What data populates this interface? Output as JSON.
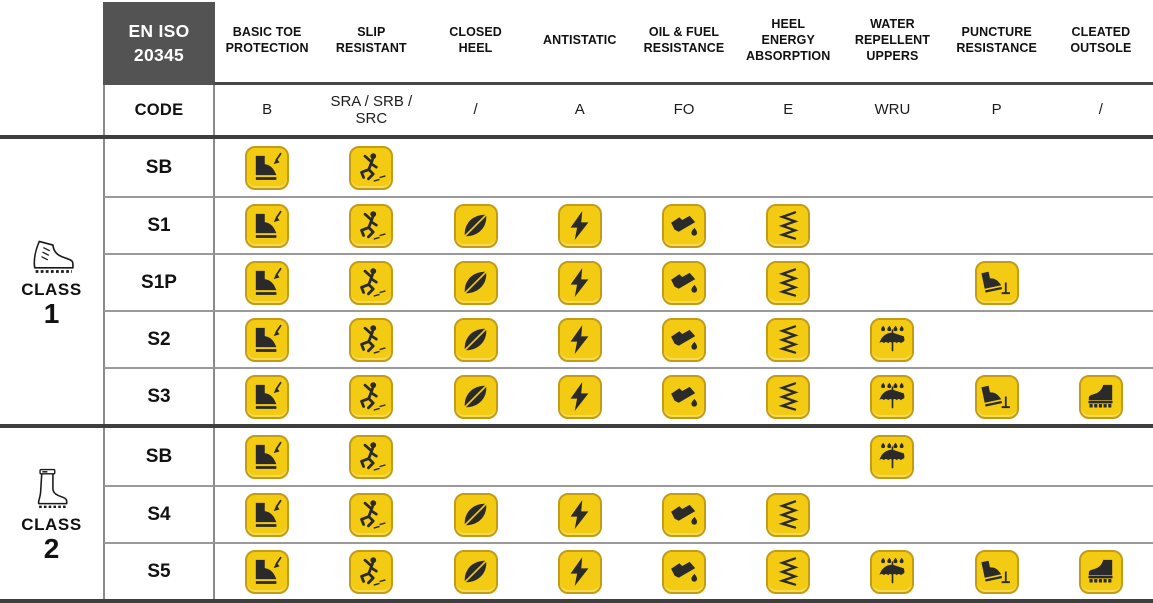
{
  "header": {
    "standard": [
      "EN ISO",
      "20345"
    ],
    "code_label": "CODE",
    "columns": [
      {
        "label": "BASIC TOE PROTECTION",
        "code": "B",
        "icon": "toe-protection-icon"
      },
      {
        "label": "SLIP RESISTANT",
        "code": "SRA / SRB / SRC",
        "icon": "slip-resistant-icon"
      },
      {
        "label": "CLOSED HEEL",
        "code": "/",
        "icon": "closed-heel-icon"
      },
      {
        "label": "ANTISTATIC",
        "code": "A",
        "icon": "antistatic-icon"
      },
      {
        "label": "OIL & FUEL RESISTANCE",
        "code": "FO",
        "icon": "oil-fuel-resistance-icon"
      },
      {
        "label": "HEEL ENERGY ABSORPTION",
        "code": "E",
        "icon": "heel-energy-absorption-icon"
      },
      {
        "label": "WATER REPELLENT UPPERS",
        "code": "WRU",
        "icon": "water-repellent-uppers-icon"
      },
      {
        "label": "PUNCTURE RESISTANCE",
        "code": "P",
        "icon": "puncture-resistance-icon"
      },
      {
        "label": "CLEATED OUTSOLE",
        "code": "/",
        "icon": "cleated-outsole-icon"
      }
    ]
  },
  "classes": [
    {
      "label": "CLASS",
      "number": "1",
      "icon": "leather-boot-icon",
      "rows": [
        {
          "code": "SB",
          "features": [
            1,
            1,
            0,
            0,
            0,
            0,
            0,
            0,
            0
          ]
        },
        {
          "code": "S1",
          "features": [
            1,
            1,
            1,
            1,
            1,
            1,
            0,
            0,
            0
          ]
        },
        {
          "code": "S1P",
          "features": [
            1,
            1,
            1,
            1,
            1,
            1,
            0,
            1,
            0
          ]
        },
        {
          "code": "S2",
          "features": [
            1,
            1,
            1,
            1,
            1,
            1,
            1,
            0,
            0
          ]
        },
        {
          "code": "S3",
          "features": [
            1,
            1,
            1,
            1,
            1,
            1,
            1,
            1,
            1
          ]
        }
      ]
    },
    {
      "label": "CLASS",
      "number": "2",
      "icon": "rubber-boot-icon",
      "rows": [
        {
          "code": "SB",
          "features": [
            1,
            1,
            0,
            0,
            0,
            0,
            1,
            0,
            0
          ]
        },
        {
          "code": "S4",
          "features": [
            1,
            1,
            1,
            1,
            1,
            1,
            0,
            0,
            0
          ]
        },
        {
          "code": "S5",
          "features": [
            1,
            1,
            1,
            1,
            1,
            1,
            1,
            1,
            1
          ]
        }
      ]
    }
  ],
  "colors": {
    "badge_yellow": "#F3CB12",
    "badge_border": "#C29C17",
    "pictogram": "#2A2A2A",
    "header_box_bg": "#535353",
    "header_box_text": "#FFFFFF",
    "thick_line": "#3E3E3E",
    "thin_line": "#9A9A9A",
    "header_underline": "#474747"
  }
}
